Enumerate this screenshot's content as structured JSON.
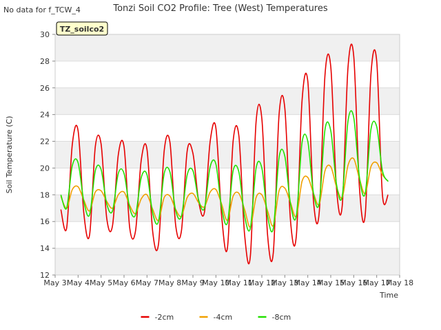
{
  "notice": "No data for f_TCW_4",
  "badge": "TZ_soilco2",
  "colors": {
    "band": "#f0f0f0",
    "grid": "#dcdcdc"
  },
  "chart_data": {
    "type": "line",
    "title": "Tonzi Soil CO2 Profile: Tree (West) Temperatures",
    "xlabel": "Time",
    "ylabel": "Soil Temperature (C)",
    "xlim": [
      "2024-05-03",
      "2024-05-18"
    ],
    "ylim": [
      12,
      30
    ],
    "x_ticks": [
      "May 3",
      "May 4",
      "May 5",
      "May 6",
      "May 7",
      "May 8",
      "May 9",
      "May 10",
      "May 11",
      "May 12",
      "May 13",
      "May 14",
      "May 15",
      "May 16",
      "May 17",
      "May 18"
    ],
    "y_ticks": [
      "12",
      "14",
      "16",
      "18",
      "20",
      "22",
      "24",
      "26",
      "28",
      "30"
    ],
    "legend_position": "bottom",
    "series": [
      {
        "name": "-2cm",
        "color": "#e60000",
        "x": [
          "05-03 06:00",
          "05-03 12:00",
          "05-03 18:00",
          "05-04 00:00",
          "05-04 06:00",
          "05-04 12:00",
          "05-04 18:00",
          "05-05 00:00",
          "05-05 06:00",
          "05-05 12:00",
          "05-05 18:00",
          "05-06 00:00",
          "05-06 06:00",
          "05-06 12:00",
          "05-06 18:00",
          "05-07 00:00",
          "05-07 06:00",
          "05-07 12:00",
          "05-07 18:00",
          "05-08 00:00",
          "05-08 06:00",
          "05-08 12:00",
          "05-08 18:00",
          "05-09 00:00",
          "05-09 06:00",
          "05-09 12:00",
          "05-09 18:00",
          "05-10 00:00",
          "05-10 06:00",
          "05-10 12:00",
          "05-10 18:00",
          "05-11 00:00",
          "05-11 06:00",
          "05-11 12:00",
          "05-11 18:00",
          "05-12 00:00",
          "05-12 06:00",
          "05-12 12:00",
          "05-12 18:00",
          "05-13 00:00",
          "05-13 06:00",
          "05-13 12:00",
          "05-13 18:00",
          "05-14 00:00",
          "05-14 06:00",
          "05-14 12:00",
          "05-14 18:00",
          "05-15 00:00",
          "05-15 06:00",
          "05-15 12:00",
          "05-15 18:00",
          "05-16 00:00",
          "05-16 06:00",
          "05-16 12:00",
          "05-16 18:00",
          "05-17 00:00",
          "05-17 06:00",
          "05-17 12:00"
        ],
        "y": [
          16.9,
          15.5,
          21.8,
          22.8,
          16.6,
          15.0,
          21.6,
          21.8,
          16.2,
          15.7,
          21.0,
          21.6,
          15.5,
          15.3,
          20.6,
          21.4,
          15.2,
          14.3,
          21.3,
          21.9,
          15.7,
          15.3,
          21.3,
          21.1,
          17.5,
          16.7,
          22.0,
          23.0,
          16.4,
          14.0,
          22.0,
          22.4,
          15.0,
          13.4,
          23.5,
          23.7,
          15.0,
          13.7,
          24.0,
          24.5,
          16.0,
          14.9,
          25.0,
          26.5,
          17.5,
          16.7,
          27.0,
          27.6,
          18.5,
          17.2,
          27.5,
          28.4,
          18.5,
          16.5,
          27.0,
          28.0,
          18.0,
          18.0
        ]
      },
      {
        "name": "-4cm",
        "color": "#f0a000",
        "x": [
          "05-03 06:00",
          "05-03 12:00",
          "05-03 18:00",
          "05-04 00:00",
          "05-04 06:00",
          "05-04 12:00",
          "05-04 18:00",
          "05-05 00:00",
          "05-05 06:00",
          "05-05 12:00",
          "05-05 18:00",
          "05-06 00:00",
          "05-06 06:00",
          "05-06 12:00",
          "05-06 18:00",
          "05-07 00:00",
          "05-07 06:00",
          "05-07 12:00",
          "05-07 18:00",
          "05-08 00:00",
          "05-08 06:00",
          "05-08 12:00",
          "05-08 18:00",
          "05-09 00:00",
          "05-09 06:00",
          "05-09 12:00",
          "05-09 18:00",
          "05-10 00:00",
          "05-10 06:00",
          "05-10 12:00",
          "05-10 18:00",
          "05-11 00:00",
          "05-11 06:00",
          "05-11 12:00",
          "05-11 18:00",
          "05-12 00:00",
          "05-12 06:00",
          "05-12 12:00",
          "05-12 18:00",
          "05-13 00:00",
          "05-13 06:00",
          "05-13 12:00",
          "05-13 18:00",
          "05-14 00:00",
          "05-14 06:00",
          "05-14 12:00",
          "05-14 18:00",
          "05-15 00:00",
          "05-15 06:00",
          "05-15 12:00",
          "05-15 18:00",
          "05-16 00:00",
          "05-16 06:00",
          "05-16 12:00",
          "05-16 18:00",
          "05-17 00:00",
          "05-17 06:00",
          "05-17 12:00"
        ],
        "y": [
          17.9,
          17.0,
          18.4,
          18.6,
          17.6,
          16.8,
          18.2,
          18.3,
          17.5,
          17.0,
          18.0,
          18.2,
          17.2,
          16.6,
          17.7,
          18.0,
          16.9,
          16.1,
          17.8,
          17.9,
          16.9,
          16.4,
          17.8,
          18.1,
          17.4,
          17.1,
          18.2,
          18.4,
          17.3,
          16.1,
          17.9,
          18.1,
          16.9,
          15.6,
          17.8,
          18.0,
          16.8,
          15.7,
          18.3,
          18.5,
          17.4,
          16.4,
          19.0,
          19.3,
          18.1,
          17.3,
          19.8,
          20.1,
          18.6,
          17.8,
          20.2,
          20.7,
          19.2,
          18.1,
          20.1,
          20.4,
          19.5,
          19.0
        ]
      },
      {
        "name": "-8cm",
        "color": "#22e000",
        "x": [
          "05-03 06:00",
          "05-03 12:00",
          "05-03 18:00",
          "05-04 00:00",
          "05-04 06:00",
          "05-04 12:00",
          "05-04 18:00",
          "05-05 00:00",
          "05-05 06:00",
          "05-05 12:00",
          "05-05 18:00",
          "05-06 00:00",
          "05-06 06:00",
          "05-06 12:00",
          "05-06 18:00",
          "05-07 00:00",
          "05-07 06:00",
          "05-07 12:00",
          "05-07 18:00",
          "05-08 00:00",
          "05-08 06:00",
          "05-08 12:00",
          "05-08 18:00",
          "05-09 00:00",
          "05-09 06:00",
          "05-09 12:00",
          "05-09 18:00",
          "05-10 00:00",
          "05-10 06:00",
          "05-10 12:00",
          "05-10 18:00",
          "05-11 00:00",
          "05-11 06:00",
          "05-11 12:00",
          "05-11 18:00",
          "05-12 00:00",
          "05-12 06:00",
          "05-12 12:00",
          "05-12 18:00",
          "05-13 00:00",
          "05-13 06:00",
          "05-13 12:00",
          "05-13 18:00",
          "05-14 00:00",
          "05-14 06:00",
          "05-14 12:00",
          "05-14 18:00",
          "05-15 00:00",
          "05-15 06:00",
          "05-15 12:00",
          "05-15 18:00",
          "05-16 00:00",
          "05-16 06:00",
          "05-16 12:00",
          "05-16 18:00",
          "05-17 00:00",
          "05-17 06:00",
          "05-17 12:00"
        ],
        "y": [
          18.0,
          17.0,
          20.2,
          20.4,
          17.5,
          16.5,
          19.8,
          19.9,
          17.3,
          16.8,
          19.6,
          19.6,
          17.0,
          16.5,
          19.3,
          19.5,
          16.6,
          16.0,
          19.6,
          19.7,
          16.8,
          16.4,
          19.5,
          19.8,
          17.6,
          17.0,
          20.1,
          20.3,
          17.0,
          15.9,
          19.8,
          19.7,
          16.4,
          15.5,
          20.0,
          20.0,
          16.4,
          15.5,
          20.8,
          20.9,
          17.3,
          16.4,
          21.9,
          22.0,
          18.1,
          17.4,
          22.9,
          22.8,
          18.8,
          17.9,
          23.5,
          23.8,
          19.3,
          18.1,
          22.9,
          23.1,
          19.8,
          19.0
        ]
      }
    ]
  }
}
